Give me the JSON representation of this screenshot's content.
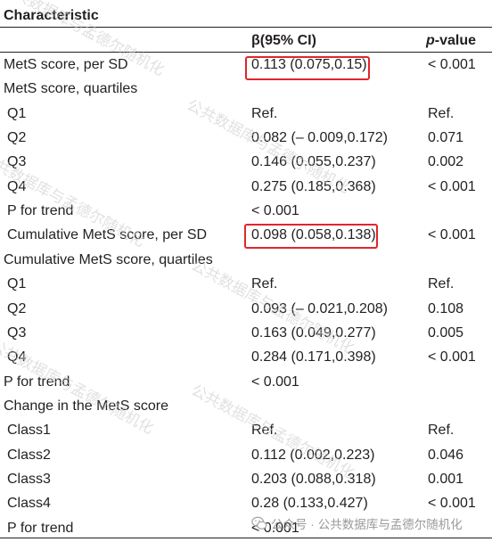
{
  "header": {
    "characteristic": "Characteristic",
    "beta": "β(95% CI)",
    "p_italic": "p",
    "p_suffix": "-value"
  },
  "rows": [
    {
      "label": "MetS score, per SD",
      "beta": "0.113 (0.075,0.15)",
      "p": "< 0.001"
    },
    {
      "label": "MetS score, quartiles",
      "beta": "",
      "p": ""
    },
    {
      "label": "Q1",
      "beta": "Ref.",
      "p": "Ref."
    },
    {
      "label": "Q2",
      "beta": "0.082 (– 0.009,0.172)",
      "p": "0.071"
    },
    {
      "label": "Q3",
      "beta": "0.146 (0.055,0.237)",
      "p": "0.002"
    },
    {
      "label": "Q4",
      "beta": "0.275 (0.185,0.368)",
      "p": "< 0.001"
    },
    {
      "label": "P for trend",
      "beta": "< 0.001",
      "p": ""
    },
    {
      "label": "Cumulative MetS score, per SD",
      "beta": "0.098 (0.058,0.138)",
      "p": "< 0.001"
    },
    {
      "label": "Cumulative MetS score, quartiles",
      "beta": "",
      "p": ""
    },
    {
      "label": "Q1",
      "beta": "Ref.",
      "p": "Ref."
    },
    {
      "label": "Q2",
      "beta": "0.093 (– 0.021,0.208)",
      "p": "0.108"
    },
    {
      "label": "Q3",
      "beta": "0.163 (0.049,0.277)",
      "p": "0.005"
    },
    {
      "label": "Q4",
      "beta": "0.284 (0.171,0.398)",
      "p": "< 0.001"
    },
    {
      "label": "P for trend",
      "beta": "< 0.001",
      "p": ""
    },
    {
      "label": "Change in the MetS score",
      "beta": "",
      "p": ""
    },
    {
      "label": "Class1",
      "beta": "Ref.",
      "p": "Ref."
    },
    {
      "label": "Class2",
      "beta": "0.112 (0.002,0.223)",
      "p": "0.046"
    },
    {
      "label": "Class3",
      "beta": "0.203 (0.088,0.318)",
      "p": "0.001"
    },
    {
      "label": "Class4",
      "beta": "0.28 (0.133,0.427)",
      "p": "< 0.001"
    },
    {
      "label": "P for trend",
      "beta": "< 0.001",
      "p": ""
    }
  ],
  "watermark": {
    "text": "公共数据库与孟德尔随机化",
    "footer_prefix": "公众号 ·",
    "footer_text": "公共数据库与孟德尔随机化"
  },
  "colors": {
    "highlight": "#e0262b",
    "text": "#231f20"
  }
}
